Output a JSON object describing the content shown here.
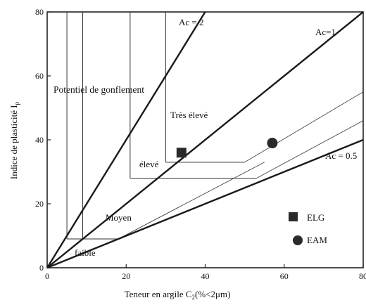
{
  "chart_data": {
    "type": "scatter",
    "title": "",
    "xlabel": "Teneur en argile C",
    "xlabel_sub": "2",
    "xlabel_unit": "(%<2μm)",
    "ylabel": "Indice de plasticité I",
    "ylabel_sub": "p",
    "xlim": [
      0,
      80
    ],
    "ylim": [
      0,
      80
    ],
    "x_ticks": [
      0,
      20,
      40,
      60,
      80
    ],
    "y_ticks": [
      0,
      20,
      40,
      60,
      80
    ],
    "lines": [
      {
        "label": "Ac = 2",
        "slope": 2
      },
      {
        "label": "Ac=1",
        "slope": 1
      },
      {
        "label": "Ac = 0.5",
        "slope": 0.5
      }
    ],
    "zones": [
      {
        "label": "faible",
        "corner": [
          5,
          9
        ]
      },
      {
        "label": "Moyen",
        "corner": [
          9,
          9
        ]
      },
      {
        "label": "élevé",
        "corner": [
          21,
          28
        ]
      },
      {
        "label": "Très élevé",
        "corner": [
          30,
          33
        ]
      },
      {
        "label": "Potentiel de gonflement"
      }
    ],
    "series": [
      {
        "name": "ELG",
        "marker": "square",
        "points": [
          [
            34,
            36
          ]
        ]
      },
      {
        "name": "EAM",
        "marker": "circle",
        "points": [
          [
            57,
            39
          ]
        ]
      }
    ]
  }
}
